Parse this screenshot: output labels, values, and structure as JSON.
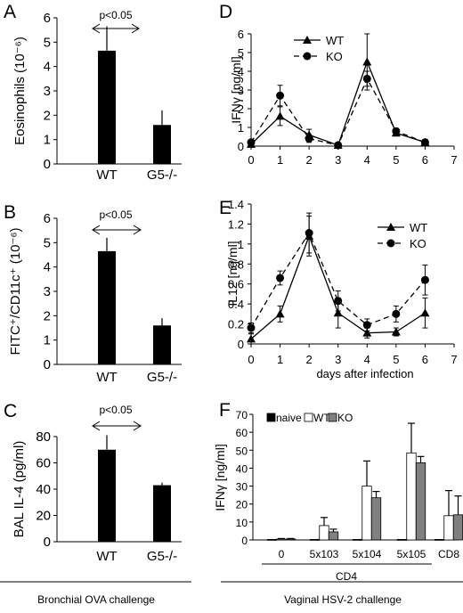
{
  "footer": {
    "left": "Bronchial OVA challenge",
    "right": "Vaginal HSV-2 challenge"
  },
  "chart_data": [
    {
      "panel": "A",
      "type": "bar",
      "ylabel": "Eosinophils (10⁻⁶)",
      "categories": [
        "WT",
        "G5-/-"
      ],
      "values": [
        4.65,
        1.6
      ],
      "errors": [
        1.0,
        0.6
      ],
      "ylim": [
        0,
        6
      ],
      "yticks": [
        0,
        1,
        2,
        3,
        4,
        5,
        6
      ],
      "annotation": "p<0.05"
    },
    {
      "panel": "B",
      "type": "bar",
      "ylabel": "FITC⁺/CD11c⁺ (10⁻⁶)",
      "categories": [
        "WT",
        "G5-/-"
      ],
      "values": [
        4.65,
        1.6
      ],
      "errors": [
        0.55,
        0.3
      ],
      "ylim": [
        0,
        6
      ],
      "yticks": [
        0,
        1,
        2,
        3,
        4,
        5,
        6
      ],
      "annotation": "p<0.05"
    },
    {
      "panel": "C",
      "type": "bar",
      "ylabel": "BAL IL-4 (pg/ml)",
      "categories": [
        "WT",
        "G5-/-"
      ],
      "values": [
        70,
        43
      ],
      "errors": [
        11,
        2
      ],
      "ylim": [
        0,
        80
      ],
      "yticks": [
        0,
        20,
        40,
        60,
        80
      ],
      "annotation": "p<0.05"
    },
    {
      "panel": "D",
      "type": "line",
      "ylabel": "IFNγ [ng/ml]",
      "x": [
        0,
        1,
        2,
        3,
        4,
        5,
        6
      ],
      "xlim": [
        0,
        7
      ],
      "xticks": [
        0,
        1,
        2,
        3,
        4,
        5,
        6,
        7
      ],
      "ylim": [
        0,
        6
      ],
      "yticks": [
        0,
        1,
        2,
        3,
        4,
        5,
        6
      ],
      "series": [
        {
          "name": "WT",
          "values": [
            0.1,
            1.6,
            0.6,
            0.05,
            4.5,
            0.7,
            0.2
          ],
          "errors": [
            0.1,
            0.5,
            0.3,
            0.05,
            1.5,
            0.15,
            0.15
          ],
          "marker": "triangle",
          "dash": false
        },
        {
          "name": "KO",
          "values": [
            0.2,
            2.7,
            0.4,
            0.05,
            3.6,
            0.8,
            0.2
          ],
          "errors": [
            0.1,
            0.55,
            0.2,
            0.05,
            0.4,
            0.15,
            0.15
          ],
          "marker": "circle",
          "dash": true
        }
      ],
      "legend": "top-left"
    },
    {
      "panel": "E",
      "type": "line",
      "ylabel": "IL12 [ng/ml]",
      "xlabel": "days after infection",
      "x": [
        0,
        1,
        2,
        3,
        4,
        5,
        6
      ],
      "xlim": [
        0,
        7
      ],
      "xticks": [
        0,
        1,
        2,
        3,
        4,
        5,
        6,
        7
      ],
      "ylim": [
        0,
        1.4
      ],
      "yticks": [
        0,
        0.2,
        0.4,
        0.6,
        0.8,
        1,
        1.2,
        1.4
      ],
      "ytick_labels": [
        "0",
        "0.2",
        "0.4",
        "0.6",
        "0.8",
        "1",
        "1.2",
        "1.4"
      ],
      "series": [
        {
          "name": "WT",
          "values": [
            0.05,
            0.3,
            1.08,
            0.31,
            0.11,
            0.12,
            0.31
          ],
          "errors": [
            0.05,
            0.08,
            0.2,
            0.15,
            0.05,
            0.04,
            0.15
          ],
          "marker": "triangle",
          "dash": false
        },
        {
          "name": "KO",
          "values": [
            0.16,
            0.66,
            1.11,
            0.43,
            0.19,
            0.3,
            0.64
          ],
          "errors": [
            0.05,
            0.07,
            0.2,
            0.1,
            0.06,
            0.08,
            0.15
          ],
          "marker": "circle",
          "dash": true
        }
      ],
      "legend": "top-right"
    },
    {
      "panel": "F",
      "type": "bar",
      "ylabel": "IFNγ [ng/ml]",
      "categories": [
        "0",
        "5x103",
        "5x104",
        "5x105",
        "CD8"
      ],
      "group_label": "CD4",
      "ylim": [
        0,
        70
      ],
      "yticks": [
        0,
        10,
        20,
        30,
        40,
        50,
        60,
        70
      ],
      "series": [
        {
          "name": "naive",
          "values": [
            0.3,
            0.3,
            0.3,
            0.3,
            0.3
          ],
          "errors": [
            0,
            0,
            0,
            0,
            0
          ],
          "color": "#000000"
        },
        {
          "name": "WT",
          "values": [
            0.5,
            8,
            30,
            48.5,
            13.5
          ],
          "errors": [
            0.3,
            4.5,
            14,
            16.5,
            14
          ],
          "color": "#ffffff"
        },
        {
          "name": "KO",
          "values": [
            0.5,
            4.5,
            23.5,
            43,
            14
          ],
          "errors": [
            0.3,
            1.5,
            3.5,
            3.5,
            10.5
          ],
          "color": "#808080"
        }
      ],
      "legend": "top-left"
    }
  ]
}
